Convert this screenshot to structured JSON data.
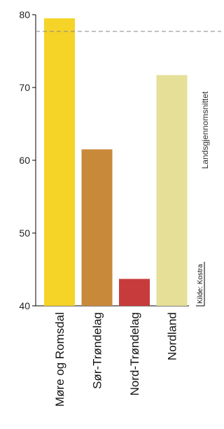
{
  "chart_data": {
    "type": "bar",
    "categories": [
      "Møre og Romsdal",
      "Sør-Trøndelag",
      "Nord-Trøndelag",
      "Nordland"
    ],
    "values": [
      79.5,
      61.5,
      43.7,
      71.7
    ],
    "colors": [
      "#f5d327",
      "#c9893b",
      "#c83b3c",
      "#e6df98"
    ],
    "ylim": [
      40,
      80
    ],
    "yticks": [
      40,
      50,
      60,
      70,
      80
    ],
    "reference_line": {
      "label": "Landsgjennomsnittet",
      "value": 77.7,
      "style": "dashed"
    },
    "source": "Kilde: Kostra",
    "title": "",
    "xlabel": "",
    "ylabel": "",
    "grid": false,
    "legend": "none"
  }
}
